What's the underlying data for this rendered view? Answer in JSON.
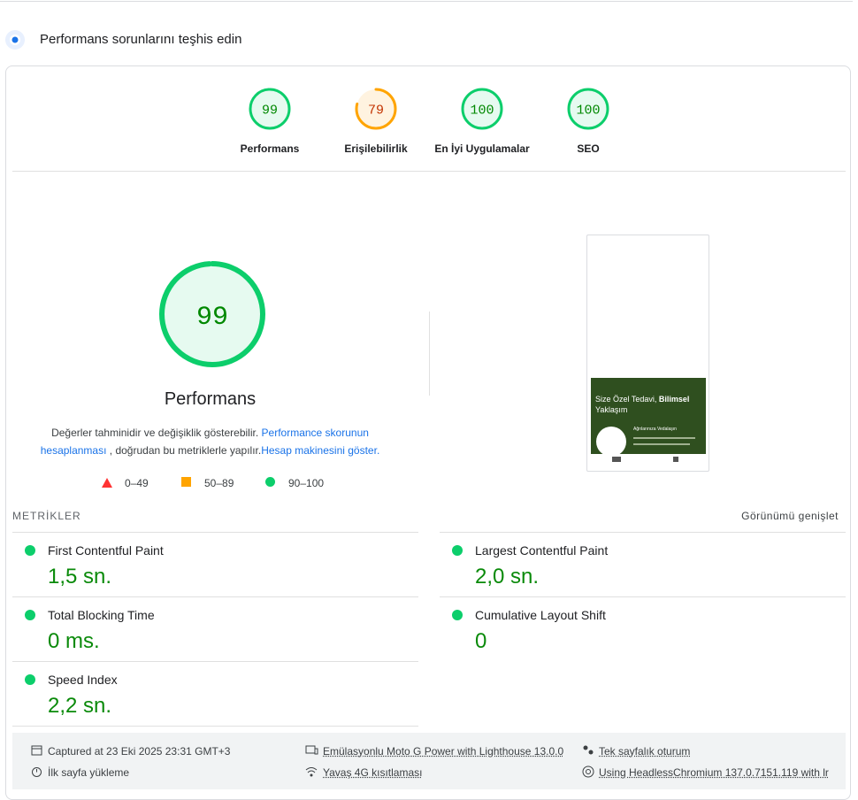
{
  "header": {
    "title": "Performans sorunlarını teşhis edin"
  },
  "gauges": [
    {
      "score": 99,
      "label": "Performans",
      "rating": "good"
    },
    {
      "score": 79,
      "label": "Erişilebilirlik",
      "rating": "average"
    },
    {
      "score": 100,
      "label": "En İyi Uygulamalar",
      "rating": "good"
    },
    {
      "score": 100,
      "label": "SEO",
      "rating": "good"
    }
  ],
  "main": {
    "score": 99,
    "label": "Performans",
    "rating": "good",
    "note": "Değerler tahminidir ve değişiklik gösterebilir.",
    "link": "Performance skorunun hesaplanması",
    "note_rest": ", doğrudan bu metriklerle yapılır.",
    "calc": "Hesap makinesini göster."
  },
  "legend": [
    "0–49",
    "50–89",
    "90–100"
  ],
  "screenshot": {
    "heading": "Size Özel Tedavi,",
    "heading_bold": "Bilimsel",
    "heading_end": "Yaklaşım",
    "sub": "Ağrılarınıza Vedalaşın"
  },
  "metrics": {
    "title": "METRİKLER",
    "expand": "Görünümü genişlet",
    "items": [
      {
        "name": "First Contentful Paint",
        "value": "1,5 sn."
      },
      {
        "name": "Largest Contentful Paint",
        "value": "2,0 sn."
      },
      {
        "name": "Total Blocking Time",
        "value": "0 ms."
      },
      {
        "name": "Cumulative Layout Shift",
        "value": "0"
      },
      {
        "name": "Speed Index",
        "value": "2,2 sn."
      }
    ]
  },
  "footer": [
    "Captured at 23 Eki 2025 23:31 GMT+3",
    "İlk sayfa yükleme",
    "Emülasyonlu Moto G Power with Lighthouse 13.0.0",
    "Yavaş 4G kısıtlaması",
    "Tek sayfalık oturum",
    "Using HeadlessChromium 137.0.7151.119 with lr"
  ]
}
